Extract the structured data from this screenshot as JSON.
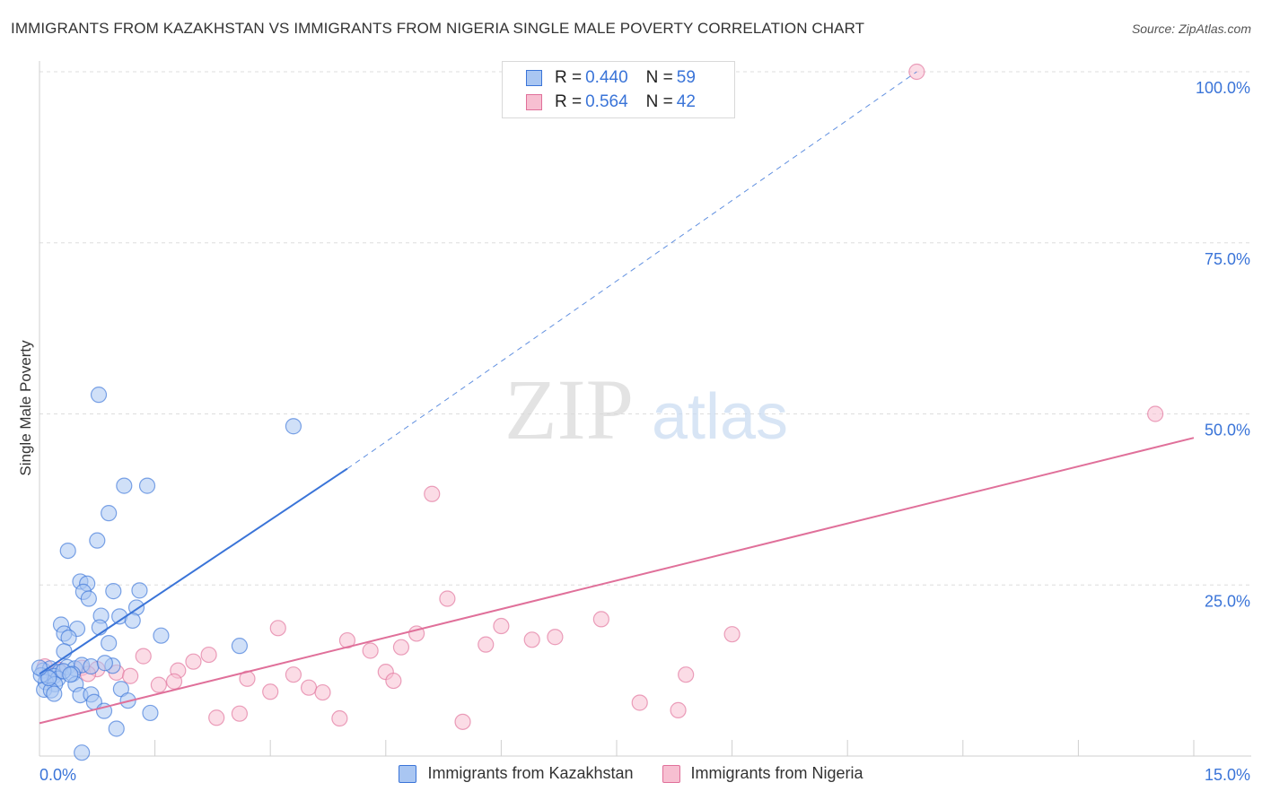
{
  "header": {
    "title": "IMMIGRANTS FROM KAZAKHSTAN VS IMMIGRANTS FROM NIGERIA SINGLE MALE POVERTY CORRELATION CHART",
    "source": "Source: ZipAtlas.com"
  },
  "legend": {
    "kazakhstan": {
      "r_label": "R = ",
      "r_value": "0.440",
      "n_label": "N = ",
      "n_value": "59"
    },
    "nigeria": {
      "r_label": "R = ",
      "r_value": "0.564",
      "n_label": "N = ",
      "n_value": "42"
    }
  },
  "watermark": {
    "zip": "ZIP",
    "atlas": "atlas"
  },
  "chart_data": {
    "type": "scatter",
    "title": "IMMIGRANTS FROM KAZAKHSTAN VS IMMIGRANTS FROM NIGERIA SINGLE MALE POVERTY CORRELATION CHART",
    "xlabel": "",
    "ylabel": "Single Male Poverty",
    "xlim": [
      0,
      15
    ],
    "ylim": [
      0,
      102
    ],
    "x_tick_labels": [
      {
        "value": 0,
        "label": "0.0%"
      },
      {
        "value": 15,
        "label": "15.0%"
      }
    ],
    "y_tick_labels": [
      {
        "value": 25,
        "label": "25.0%"
      },
      {
        "value": 50,
        "label": "50.0%"
      },
      {
        "value": 75,
        "label": "75.0%"
      },
      {
        "value": 100,
        "label": "100.0%"
      }
    ],
    "grid": true,
    "legend_position": "top-center",
    "colors": {
      "kazakhstan": "#3a74d8",
      "nigeria": "#e0709a",
      "kazakhstan_fill": "#a9c6f2",
      "nigeria_fill": "#f7bfd1"
    },
    "series": [
      {
        "name": "Immigrants from Kazakhstan",
        "key": "kazakhstan",
        "r": 0.44,
        "n": 59,
        "trend": {
          "x0": 0.0,
          "y0": 12.0,
          "x1": 4.0,
          "y1": 42.0,
          "dash_to_x": 11.4,
          "dash_to_y": 100.0
        },
        "points": [
          [
            0.77,
            52.8
          ],
          [
            3.3,
            48.2
          ],
          [
            1.1,
            39.5
          ],
          [
            1.4,
            39.5
          ],
          [
            0.9,
            35.5
          ],
          [
            0.75,
            31.5
          ],
          [
            0.37,
            30.0
          ],
          [
            0.53,
            25.5
          ],
          [
            0.62,
            25.2
          ],
          [
            0.57,
            24.0
          ],
          [
            0.64,
            23.0
          ],
          [
            0.96,
            24.1
          ],
          [
            1.3,
            24.2
          ],
          [
            1.26,
            21.7
          ],
          [
            0.8,
            20.5
          ],
          [
            1.04,
            20.4
          ],
          [
            1.21,
            19.8
          ],
          [
            0.28,
            19.2
          ],
          [
            0.78,
            18.8
          ],
          [
            0.49,
            18.6
          ],
          [
            0.32,
            17.9
          ],
          [
            0.38,
            17.3
          ],
          [
            1.58,
            17.6
          ],
          [
            0.9,
            16.5
          ],
          [
            2.6,
            16.1
          ],
          [
            0.32,
            15.3
          ],
          [
            0.05,
            12.5
          ],
          [
            0.14,
            12.8
          ],
          [
            0.26,
            12.3
          ],
          [
            0.36,
            13.0
          ],
          [
            0.46,
            12.8
          ],
          [
            0.55,
            13.3
          ],
          [
            0.67,
            13.1
          ],
          [
            0.95,
            13.2
          ],
          [
            0.85,
            13.6
          ],
          [
            0.1,
            11.6
          ],
          [
            0.19,
            11.7
          ],
          [
            0.24,
            11.3
          ],
          [
            0.43,
            12.0
          ],
          [
            0.08,
            10.8
          ],
          [
            0.02,
            11.8
          ],
          [
            0.2,
            10.5
          ],
          [
            0.06,
            9.7
          ],
          [
            0.15,
            9.6
          ],
          [
            0.19,
            9.1
          ],
          [
            0.47,
            10.5
          ],
          [
            0.53,
            8.9
          ],
          [
            0.67,
            9.0
          ],
          [
            0.71,
            7.9
          ],
          [
            1.06,
            9.8
          ],
          [
            1.15,
            8.1
          ],
          [
            0.84,
            6.6
          ],
          [
            1.44,
            6.3
          ],
          [
            1.0,
            4.0
          ],
          [
            0.55,
            0.5
          ],
          [
            0.12,
            11.4
          ],
          [
            0.31,
            12.4
          ],
          [
            0.4,
            11.9
          ],
          [
            0.0,
            12.9
          ]
        ]
      },
      {
        "name": "Immigrants from Nigeria",
        "key": "nigeria",
        "r": 0.564,
        "n": 42,
        "trend": {
          "x0": 0.0,
          "y0": 4.8,
          "x1": 15.0,
          "y1": 46.5
        },
        "points": [
          [
            11.4,
            100.0
          ],
          [
            14.5,
            50.0
          ],
          [
            5.1,
            38.3
          ],
          [
            5.3,
            23.0
          ],
          [
            7.3,
            20.0
          ],
          [
            3.1,
            18.7
          ],
          [
            6.0,
            19.0
          ],
          [
            4.9,
            17.9
          ],
          [
            9.0,
            17.8
          ],
          [
            6.7,
            17.4
          ],
          [
            6.4,
            17.0
          ],
          [
            4.0,
            16.9
          ],
          [
            5.8,
            16.3
          ],
          [
            4.7,
            15.9
          ],
          [
            4.3,
            15.4
          ],
          [
            2.2,
            14.8
          ],
          [
            1.35,
            14.6
          ],
          [
            2.0,
            13.8
          ],
          [
            0.07,
            13.1
          ],
          [
            0.55,
            12.9
          ],
          [
            0.75,
            12.7
          ],
          [
            1.0,
            12.2
          ],
          [
            1.8,
            12.5
          ],
          [
            4.5,
            12.3
          ],
          [
            3.3,
            11.9
          ],
          [
            0.63,
            12.0
          ],
          [
            1.18,
            11.7
          ],
          [
            8.4,
            11.9
          ],
          [
            2.7,
            11.3
          ],
          [
            1.75,
            10.9
          ],
          [
            4.6,
            11.0
          ],
          [
            1.55,
            10.4
          ],
          [
            3.5,
            10.0
          ],
          [
            3.0,
            9.4
          ],
          [
            3.68,
            9.3
          ],
          [
            0.25,
            12.6
          ],
          [
            7.8,
            7.8
          ],
          [
            8.3,
            6.7
          ],
          [
            2.6,
            6.2
          ],
          [
            2.3,
            5.6
          ],
          [
            3.9,
            5.5
          ],
          [
            5.5,
            5.0
          ]
        ]
      }
    ]
  },
  "bottom_legend": {
    "kazakhstan": "Immigrants from Kazakhstan",
    "nigeria": "Immigrants from Nigeria"
  }
}
